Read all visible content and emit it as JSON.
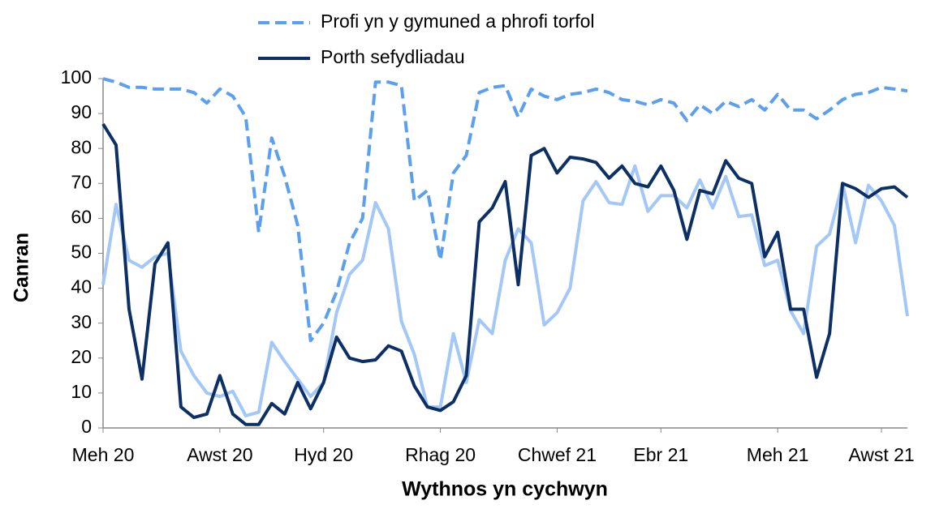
{
  "chart_data": {
    "type": "line",
    "y_label": "Canran",
    "x_label": "Wythnos yn cychwyn",
    "categories": [
      "Meh 20",
      null,
      null,
      null,
      null,
      null,
      null,
      null,
      null,
      "Awst 20",
      null,
      null,
      null,
      null,
      null,
      null,
      null,
      "Hyd 20",
      null,
      null,
      null,
      null,
      null,
      null,
      null,
      null,
      "Rhag 20",
      null,
      null,
      null,
      null,
      null,
      null,
      null,
      null,
      "Chwef 21",
      null,
      null,
      null,
      null,
      null,
      null,
      null,
      "Ebr 21",
      null,
      null,
      null,
      null,
      null,
      null,
      null,
      null,
      "Meh 21",
      null,
      null,
      null,
      null,
      null,
      null,
      null,
      "Awst 21",
      null,
      null
    ],
    "ylim": [
      0,
      100
    ],
    "yticks": [
      0,
      10,
      20,
      30,
      40,
      50,
      60,
      70,
      80,
      90,
      100
    ],
    "grid": false,
    "legend": "top",
    "series": [
      {
        "name": "Profi yn y gymuned a phrofi torfol",
        "color": "#5b9ff0",
        "dashed": true,
        "values": [
          100,
          99,
          97.5,
          97.5,
          97,
          97,
          97,
          96,
          93,
          97,
          95,
          89,
          56,
          83,
          72,
          58,
          25,
          30,
          39,
          53,
          60,
          99,
          99,
          98,
          65,
          68,
          48,
          73,
          78,
          96,
          97.5,
          98,
          89,
          97,
          95,
          94,
          95.5,
          96,
          97,
          96,
          94,
          93.5,
          92.5,
          94,
          93,
          88,
          92.5,
          90,
          93.5,
          92,
          94,
          91,
          95.5,
          91,
          91,
          88.5,
          91,
          94,
          95.5,
          96,
          97.5,
          97,
          96.5
        ]
      },
      {
        "name": "Porth sefydliadau",
        "color": "#0c2f66",
        "dashed": false,
        "values": [
          87,
          81,
          34,
          14,
          47,
          53,
          6,
          3,
          4,
          15,
          4,
          1,
          1,
          7,
          4,
          13,
          5.5,
          13,
          26,
          20,
          19,
          19.5,
          23.5,
          22,
          12,
          6,
          5,
          7.5,
          15,
          59,
          63,
          70.5,
          41,
          78,
          80,
          73,
          77.5,
          77,
          76,
          71.5,
          75,
          70,
          69,
          75,
          68,
          54,
          68,
          67,
          76.5,
          71.5,
          70,
          49,
          56,
          34,
          34,
          14.5,
          27,
          70,
          68.5,
          66,
          68.5,
          69,
          66
        ]
      },
      {
        "color": "#a3c8f7",
        "dashed": false,
        "values": [
          41,
          64,
          48,
          46,
          49,
          50,
          22,
          15,
          10,
          9,
          10.5,
          3.5,
          4.5,
          24.5,
          19,
          14,
          9,
          13,
          33,
          44,
          48,
          64.5,
          57,
          30.5,
          21,
          6,
          6,
          27,
          13,
          31,
          27,
          48,
          57,
          53,
          29.5,
          33,
          40,
          65,
          70.5,
          64.5,
          64,
          75,
          62,
          66.5,
          66.5,
          63,
          71,
          63,
          72,
          60.5,
          61,
          46.5,
          48,
          33.5,
          27,
          52,
          55.5,
          70,
          53,
          69.5,
          65,
          58,
          32
        ]
      }
    ]
  }
}
